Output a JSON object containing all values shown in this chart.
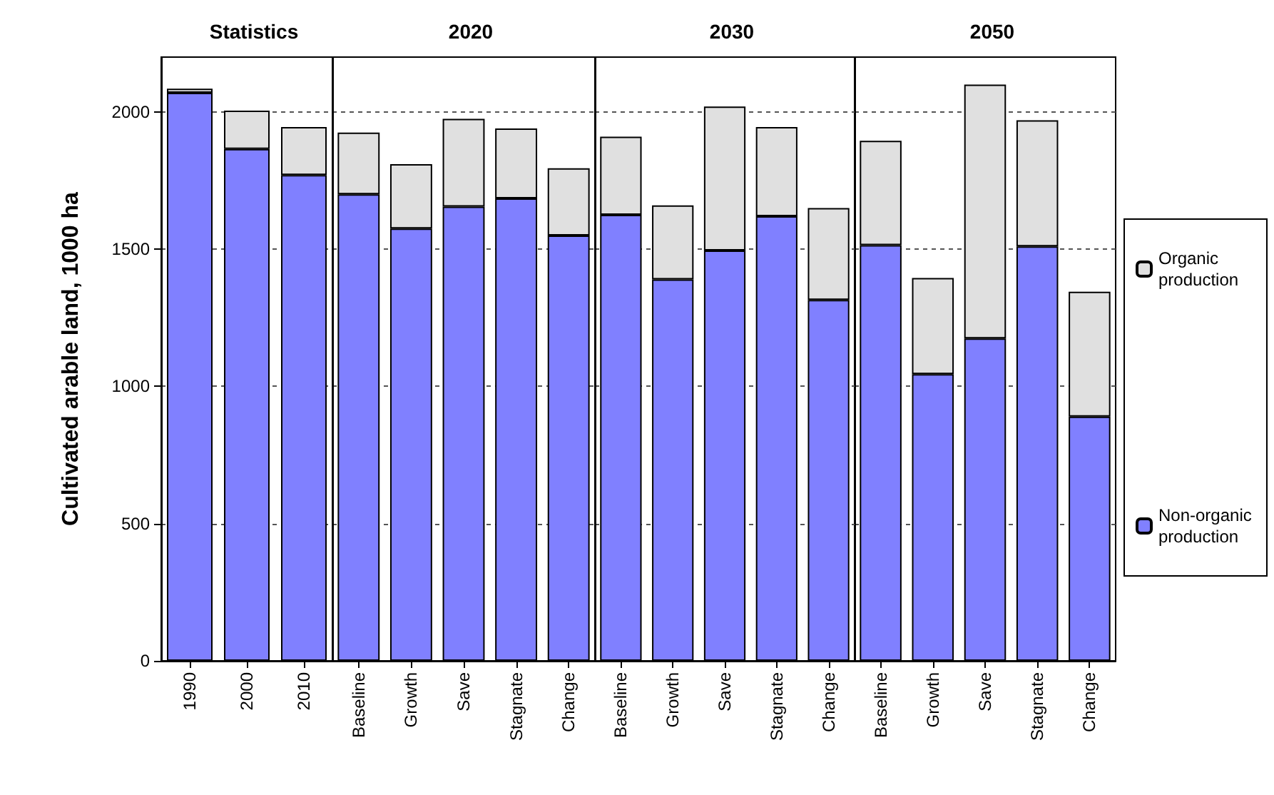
{
  "chart_data": [
    {
      "type": "bar",
      "title": "Statistics",
      "ylabel": "Cultivated arable land, 1000 ha",
      "categories": [
        "1990",
        "2000",
        "2010"
      ],
      "stacked": true,
      "ylim": [
        0,
        2200
      ],
      "yticks": [
        0,
        500,
        1000,
        1500,
        2000
      ],
      "grid": "y",
      "legend": false,
      "series": [
        {
          "color": "#8080ff",
          "values": [
            2070,
            1865,
            1770
          ]
        },
        {
          "color": "#e0e0e0",
          "values": [
            15,
            140,
            175
          ]
        }
      ]
    },
    {
      "type": "bar",
      "title": "2020",
      "categories": [
        "Baseline",
        "Growth",
        "Save",
        "Stagnate",
        "Change"
      ],
      "stacked": true,
      "ylim": [
        0,
        2200
      ],
      "yticks": [
        0,
        500,
        1000,
        1500,
        2000
      ],
      "grid": "y",
      "legend": false,
      "tick_labels": "x",
      "series": [
        {
          "color": "#8080ff",
          "values": [
            1700,
            1575,
            1655,
            1685,
            1550
          ]
        },
        {
          "color": "#e0e0e0",
          "values": [
            225,
            235,
            320,
            255,
            245
          ]
        }
      ]
    },
    {
      "type": "bar",
      "title": "2030",
      "categories": [
        "Baseline",
        "Growth",
        "Save",
        "Stagnate",
        "Change"
      ],
      "stacked": true,
      "ylim": [
        0,
        2200
      ],
      "yticks": [
        0,
        500,
        1000,
        1500,
        2000
      ],
      "grid": "y",
      "legend": false,
      "tick_labels": "x",
      "series": [
        {
          "color": "#8080ff",
          "values": [
            1625,
            1390,
            1495,
            1620,
            1315
          ]
        },
        {
          "color": "#e0e0e0",
          "values": [
            285,
            270,
            525,
            325,
            335
          ]
        }
      ]
    },
    {
      "type": "bar",
      "title": "2050",
      "categories": [
        "Baseline",
        "Growth",
        "Save",
        "Stagnate",
        "Change"
      ],
      "stacked": true,
      "ylim": [
        0,
        2200
      ],
      "yticks": [
        0,
        500,
        1000,
        1500,
        2000
      ],
      "grid": "y",
      "legend": "right",
      "tick_labels": "x",
      "series": [
        {
          "name": "Non-organic production",
          "color": "#8080ff",
          "values": [
            1515,
            1045,
            1175,
            1510,
            890
          ]
        },
        {
          "name": "Organic production",
          "color": "#e0e0e0",
          "values": [
            380,
            350,
            925,
            460,
            455
          ]
        }
      ]
    }
  ]
}
